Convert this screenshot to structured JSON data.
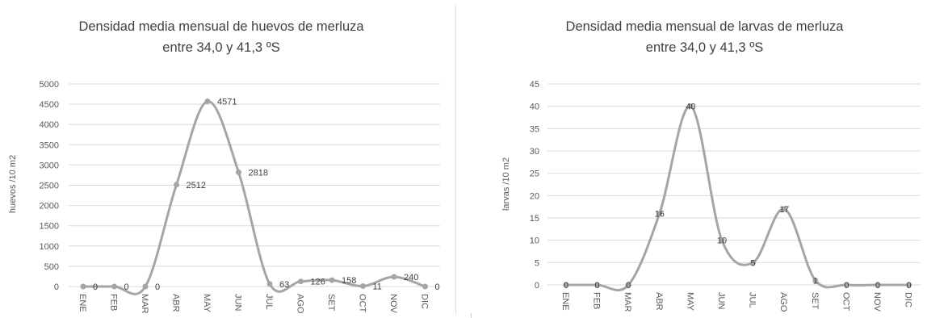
{
  "chart_data": [
    {
      "type": "line",
      "title": "Densidad media mensual de huevos de merluza",
      "subtitle": "entre 34,0 y 41,3 ºS",
      "xlabel": "",
      "ylabel": "huevos /10 m2",
      "categories": [
        "ENE",
        "FEB",
        "MAR",
        "ABR",
        "MAY",
        "JUN",
        "JUL",
        "AGO",
        "SET",
        "OCT",
        "NOV",
        "DIC"
      ],
      "series": [
        {
          "values": [
            0,
            0,
            0,
            2512,
            4571,
            2818,
            63,
            126,
            158,
            11,
            240,
            0
          ]
        }
      ],
      "data_labels": [
        "0",
        "0",
        "0",
        "2512",
        "4571",
        "2818",
        "63",
        "126",
        "158",
        "11",
        "240",
        "0"
      ],
      "ylim": [
        0,
        5000
      ],
      "yticks": [
        0,
        500,
        1000,
        1500,
        2000,
        2500,
        3000,
        3500,
        4000,
        4500,
        5000
      ],
      "smoothed": true,
      "grid": true,
      "legend": "none",
      "color": "#a5a5a5"
    },
    {
      "type": "line",
      "title": "Densidad media mensual de larvas de merluza",
      "subtitle": "entre 34,0 y 41,3 ºS",
      "xlabel": "",
      "ylabel": "larvas /10 m2",
      "categories": [
        "ENE",
        "FEB",
        "MAR",
        "ABR",
        "MAY",
        "JUN",
        "JUL",
        "AGO",
        "SET",
        "OCT",
        "NOV",
        "DIC"
      ],
      "series": [
        {
          "values": [
            0,
            0,
            0,
            16,
            40,
            10,
            5,
            17,
            1,
            0,
            0,
            0
          ]
        }
      ],
      "data_labels": [
        "0",
        "0",
        "0",
        "16",
        "40",
        "10",
        "5",
        "17",
        "1",
        "0",
        "0",
        "0"
      ],
      "ylim": [
        0,
        45
      ],
      "yticks": [
        0,
        5,
        10,
        15,
        20,
        25,
        30,
        35,
        40,
        45
      ],
      "smoothed": true,
      "grid": true,
      "legend": "none",
      "color": "#a5a5a5"
    }
  ]
}
